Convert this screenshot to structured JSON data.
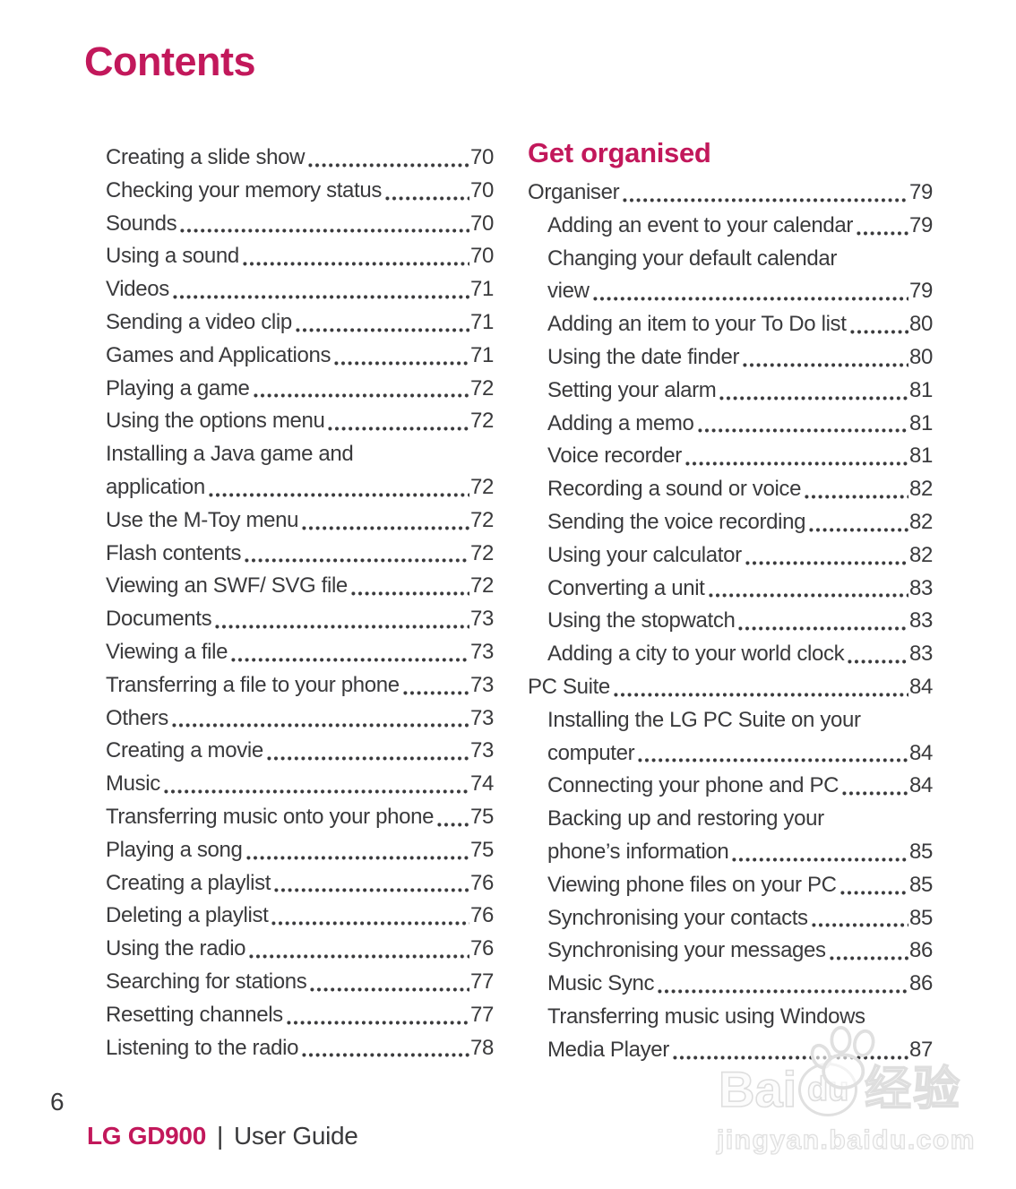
{
  "page": {
    "title": "Contents",
    "footer_page_number": "6",
    "footer_brand": "LG GD900",
    "footer_separator": "|",
    "footer_doc": "User Guide"
  },
  "colors": {
    "accent": "#c2185b",
    "text": "#3a3a3c"
  },
  "left_column": {
    "entries": [
      {
        "lines": [
          "Creating a slide show"
        ],
        "page": "70",
        "indent": true
      },
      {
        "lines": [
          "Checking your memory status"
        ],
        "page": "70",
        "indent": true
      },
      {
        "lines": [
          "Sounds"
        ],
        "page": "70",
        "indent": true
      },
      {
        "lines": [
          "Using a sound"
        ],
        "page": "70",
        "indent": true
      },
      {
        "lines": [
          "Videos"
        ],
        "page": "71",
        "indent": true
      },
      {
        "lines": [
          "Sending a video clip"
        ],
        "page": "71",
        "indent": true
      },
      {
        "lines": [
          "Games and Applications"
        ],
        "page": "71",
        "indent": true
      },
      {
        "lines": [
          "Playing a game"
        ],
        "page": "72",
        "indent": true
      },
      {
        "lines": [
          "Using the options menu"
        ],
        "page": "72",
        "indent": true
      },
      {
        "lines": [
          "Installing a Java game and",
          "application"
        ],
        "page": "72",
        "indent": true
      },
      {
        "lines": [
          "Use the M-Toy menu"
        ],
        "page": "72",
        "indent": true
      },
      {
        "lines": [
          "Flash contents"
        ],
        "page": "72",
        "indent": true
      },
      {
        "lines": [
          "Viewing an SWF/ SVG file"
        ],
        "page": "72",
        "indent": true
      },
      {
        "lines": [
          "Documents"
        ],
        "page": "73",
        "indent": true
      },
      {
        "lines": [
          "Viewing a file"
        ],
        "page": "73",
        "indent": true
      },
      {
        "lines": [
          "Transferring a file to your phone"
        ],
        "page": "73",
        "indent": true
      },
      {
        "lines": [
          "Others"
        ],
        "page": "73",
        "indent": true
      },
      {
        "lines": [
          "Creating a movie"
        ],
        "page": "73",
        "indent": true
      },
      {
        "lines": [
          "Music"
        ],
        "page": "74",
        "indent": true
      },
      {
        "lines": [
          "Transferring music onto your phone"
        ],
        "page": "75",
        "indent": true
      },
      {
        "lines": [
          "Playing a song"
        ],
        "page": "75",
        "indent": true
      },
      {
        "lines": [
          "Creating a playlist"
        ],
        "page": "76",
        "indent": true
      },
      {
        "lines": [
          "Deleting a playlist"
        ],
        "page": "76",
        "indent": true
      },
      {
        "lines": [
          "Using the radio"
        ],
        "page": "76",
        "indent": true
      },
      {
        "lines": [
          "Searching for stations"
        ],
        "page": "77",
        "indent": true
      },
      {
        "lines": [
          "Resetting channels"
        ],
        "page": "77",
        "indent": true
      },
      {
        "lines": [
          "Listening to the radio"
        ],
        "page": "78",
        "indent": true
      }
    ]
  },
  "right_column": {
    "heading": "Get organised",
    "entries": [
      {
        "lines": [
          "Organiser"
        ],
        "page": "79",
        "indent": false
      },
      {
        "lines": [
          "Adding an event to your calendar"
        ],
        "page": "79",
        "indent": true
      },
      {
        "lines": [
          "Changing your default calendar",
          "view"
        ],
        "page": "79",
        "indent": true
      },
      {
        "lines": [
          "Adding an item to your To Do list"
        ],
        "page": "80",
        "indent": true
      },
      {
        "lines": [
          "Using the date finder"
        ],
        "page": "80",
        "indent": true
      },
      {
        "lines": [
          "Setting your alarm"
        ],
        "page": "81",
        "indent": true
      },
      {
        "lines": [
          "Adding a memo"
        ],
        "page": "81",
        "indent": true
      },
      {
        "lines": [
          "Voice recorder"
        ],
        "page": "81",
        "indent": true
      },
      {
        "lines": [
          "Recording a sound or voice"
        ],
        "page": "82",
        "indent": true
      },
      {
        "lines": [
          "Sending the voice recording"
        ],
        "page": "82",
        "indent": true
      },
      {
        "lines": [
          "Using your calculator"
        ],
        "page": "82",
        "indent": true
      },
      {
        "lines": [
          "Converting a unit"
        ],
        "page": "83",
        "indent": true
      },
      {
        "lines": [
          "Using the stopwatch"
        ],
        "page": "83",
        "indent": true
      },
      {
        "lines": [
          "Adding a city to your world clock"
        ],
        "page": "83",
        "indent": true
      },
      {
        "lines": [
          "PC Suite"
        ],
        "page": "84",
        "indent": false
      },
      {
        "lines": [
          "Installing the LG PC Suite on your",
          "computer"
        ],
        "page": "84",
        "indent": true
      },
      {
        "lines": [
          "Connecting your phone and PC"
        ],
        "page": "84",
        "indent": true
      },
      {
        "lines": [
          "Backing up and restoring your",
          "phone’s information"
        ],
        "page": "85",
        "indent": true
      },
      {
        "lines": [
          "Viewing phone files on your PC"
        ],
        "page": "85",
        "indent": true
      },
      {
        "lines": [
          "Synchronising your contacts"
        ],
        "page": "85",
        "indent": true
      },
      {
        "lines": [
          "Synchronising your messages"
        ],
        "page": "86",
        "indent": true
      },
      {
        "lines": [
          "Music Sync"
        ],
        "page": "86",
        "indent": true
      },
      {
        "lines": [
          "Transferring music using Windows",
          "Media Player"
        ],
        "page": "87",
        "indent": true
      }
    ]
  },
  "watermark": {
    "logo_left": "Bai",
    "logo_mid": "du",
    "logo_cjk": "经验",
    "url": "jingyan.baidu.com"
  }
}
